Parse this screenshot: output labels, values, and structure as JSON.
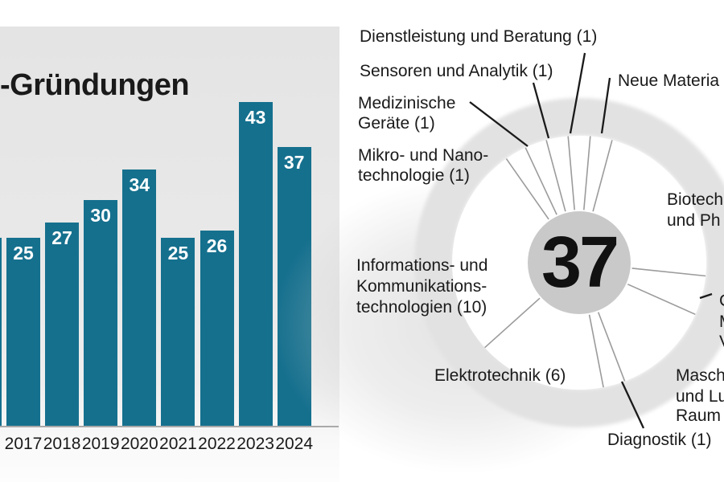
{
  "chart_data": [
    {
      "type": "bar",
      "title": "-Gründungen",
      "categories": [
        "2017",
        "2018",
        "2019",
        "2020",
        "2021",
        "2022",
        "2023",
        "2024"
      ],
      "values": [
        25,
        27,
        30,
        34,
        25,
        26,
        43,
        37
      ],
      "clipped_left_edge_bar": {
        "estimated_value": 25
      },
      "xlabel": "",
      "ylabel": "",
      "ylim": [
        0,
        46
      ],
      "grid": false,
      "bar_color": "#15708e",
      "value_label_color": "#ffffff",
      "axis_line_color": "#a9a9a9"
    },
    {
      "type": "pie",
      "center_total": "37",
      "slices": [
        {
          "name": "dienstleistung-und-beratung",
          "label": "Dienstleistung und Beratung (1)",
          "value": 1
        },
        {
          "name": "sensoren-und-analytik",
          "label": "Sensoren und Analytik (1)",
          "value": 1
        },
        {
          "name": "medizinische-geraete",
          "label_line1": "Medizinische",
          "label_line2": "Geräte (1)",
          "value": 1
        },
        {
          "name": "mikro-und-nanotechnologie",
          "label_line1": "Mikro- und Nano-",
          "label_line2": "technologie (1)",
          "value": 1
        },
        {
          "name": "neue-materia-clipped",
          "label": "Neue Materia",
          "value": 1,
          "estimated": true
        },
        {
          "name": "biotech-und-ph-clipped",
          "label_line1": "Biotech",
          "label_line2": "und Ph",
          "value": 8,
          "estimated": true
        },
        {
          "name": "right-edge-clipped",
          "label_line1": "C",
          "label_line2": "M",
          "label_line3": "V",
          "value": 2,
          "estimated": true
        },
        {
          "name": "masch-und-lu-raum-clipped",
          "label_line1": "Masch",
          "label_line2": "und Lu",
          "label_line3": "Raum",
          "value": 5,
          "estimated": true
        },
        {
          "name": "diagnostik",
          "label": "Diagnostik (1)",
          "value": 1
        },
        {
          "name": "elektrotechnik",
          "label": "Elektrotechnik (6)",
          "value": 6
        },
        {
          "name": "informations-und-kommunikationstechnologien",
          "label_line1": "Informations- und",
          "label_line2": "Kommunikations-",
          "label_line3": "technologien (10)",
          "value": 10
        }
      ],
      "boundary_angles_deg": [
        75,
        85,
        95,
        105,
        115,
        125,
        222,
        281,
        291,
        336,
        354
      ],
      "legend_position": "around",
      "colors": {
        "ring": "#e2e2e2",
        "hub": "#c9c9c9",
        "slice_fill": "#ffffff",
        "divider": "#9b9b9b",
        "leader": "#1a1a1a"
      }
    }
  ]
}
